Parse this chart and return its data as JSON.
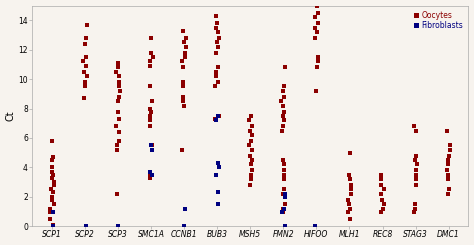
{
  "categories": [
    "SCP1",
    "SCP2",
    "SCP3",
    "SMC1A",
    "CCNB1",
    "BUB3",
    "MSH5",
    "FMN2",
    "HIFOO",
    "MLH1",
    "REC8",
    "STAG3",
    "DMC1"
  ],
  "ylabel": "Ct",
  "ylim": [
    0,
    15
  ],
  "yticks": [
    0,
    2,
    4,
    6,
    8,
    10,
    12,
    14
  ],
  "legend_labels": [
    "Oocytes",
    "Fibroblasts"
  ],
  "oocyte_color": "#8B0000",
  "fibroblast_color": "#000080",
  "background_color": "#f7f3ee",
  "oocytes_data": {
    "SCP1": [
      5.8,
      4.7,
      4.5,
      4.0,
      3.7,
      3.5,
      3.3,
      3.0,
      2.8,
      2.5,
      2.3,
      2.0,
      1.8,
      1.5,
      1.2,
      1.0,
      0.5,
      0.1
    ],
    "SCP2": [
      13.7,
      12.8,
      12.4,
      11.5,
      11.2,
      10.9,
      10.5,
      10.2,
      9.8,
      9.5,
      8.7
    ],
    "SCP3": [
      11.1,
      10.8,
      10.5,
      10.2,
      9.8,
      9.5,
      9.2,
      8.8,
      8.5,
      7.8,
      7.3,
      6.8,
      6.4,
      5.8,
      5.5,
      5.2,
      2.2
    ],
    "SMC1A": [
      12.8,
      11.8,
      11.5,
      11.2,
      10.9,
      9.5,
      8.5,
      8.0,
      7.8,
      7.5,
      7.2,
      6.8,
      5.5,
      3.5,
      3.3
    ],
    "CCNB1": [
      13.3,
      12.8,
      12.5,
      12.2,
      11.8,
      11.5,
      11.2,
      10.8,
      9.8,
      9.5,
      8.8,
      8.5,
      8.2,
      5.2
    ],
    "BUB3": [
      14.3,
      13.8,
      13.5,
      13.2,
      12.8,
      12.5,
      12.2,
      11.8,
      10.8,
      10.5,
      10.2,
      9.8,
      9.5,
      7.5,
      7.3
    ],
    "MSH5": [
      7.5,
      7.2,
      6.8,
      6.5,
      6.2,
      5.8,
      5.5,
      5.2,
      4.8,
      4.5,
      4.2,
      3.8,
      3.5,
      3.2,
      2.8
    ],
    "FMN2": [
      10.8,
      9.5,
      9.2,
      8.8,
      8.5,
      8.2,
      7.8,
      7.5,
      7.2,
      6.8,
      6.5,
      4.5,
      4.2,
      3.8,
      3.5,
      3.2,
      2.5,
      2.2,
      1.5,
      1.2,
      1.0
    ],
    "HIFOO": [
      15.0,
      14.5,
      14.2,
      13.8,
      13.5,
      13.2,
      12.8,
      11.5,
      11.2,
      10.8,
      9.2
    ],
    "MLH1": [
      5.0,
      3.5,
      3.2,
      2.8,
      2.5,
      2.2,
      1.8,
      1.5,
      1.2,
      1.0,
      0.5
    ],
    "REC8": [
      3.5,
      3.2,
      2.8,
      2.5,
      2.2,
      1.8,
      1.5,
      1.2,
      1.0
    ],
    "STAG3": [
      6.8,
      6.5,
      4.8,
      4.5,
      4.2,
      3.8,
      3.5,
      3.2,
      2.8,
      1.5,
      1.2,
      1.0
    ],
    "DMC1": [
      6.5,
      5.5,
      5.2,
      4.8,
      4.5,
      4.2,
      3.8,
      3.5,
      3.2,
      2.5,
      2.2
    ]
  },
  "fibroblasts_data": {
    "SCP1": [
      1.0,
      0.05
    ],
    "SCP2": [
      0.05
    ],
    "SCP3": [
      0.05
    ],
    "SMC1A": [
      5.5,
      5.2,
      3.7,
      3.5
    ],
    "CCNB1": [
      1.2,
      0.05
    ],
    "BUB3": [
      7.5,
      7.2,
      4.3,
      4.0,
      3.5,
      2.3,
      1.5
    ],
    "MSH5": [],
    "FMN2": [
      2.2,
      2.0,
      1.2,
      1.0,
      0.05
    ],
    "HIFOO": [
      0.05
    ],
    "MLH1": [],
    "REC8": [],
    "STAG3": [],
    "DMC1": []
  },
  "marker_size": 3.5,
  "axis_fontsize": 7,
  "tick_fontsize": 5.5
}
